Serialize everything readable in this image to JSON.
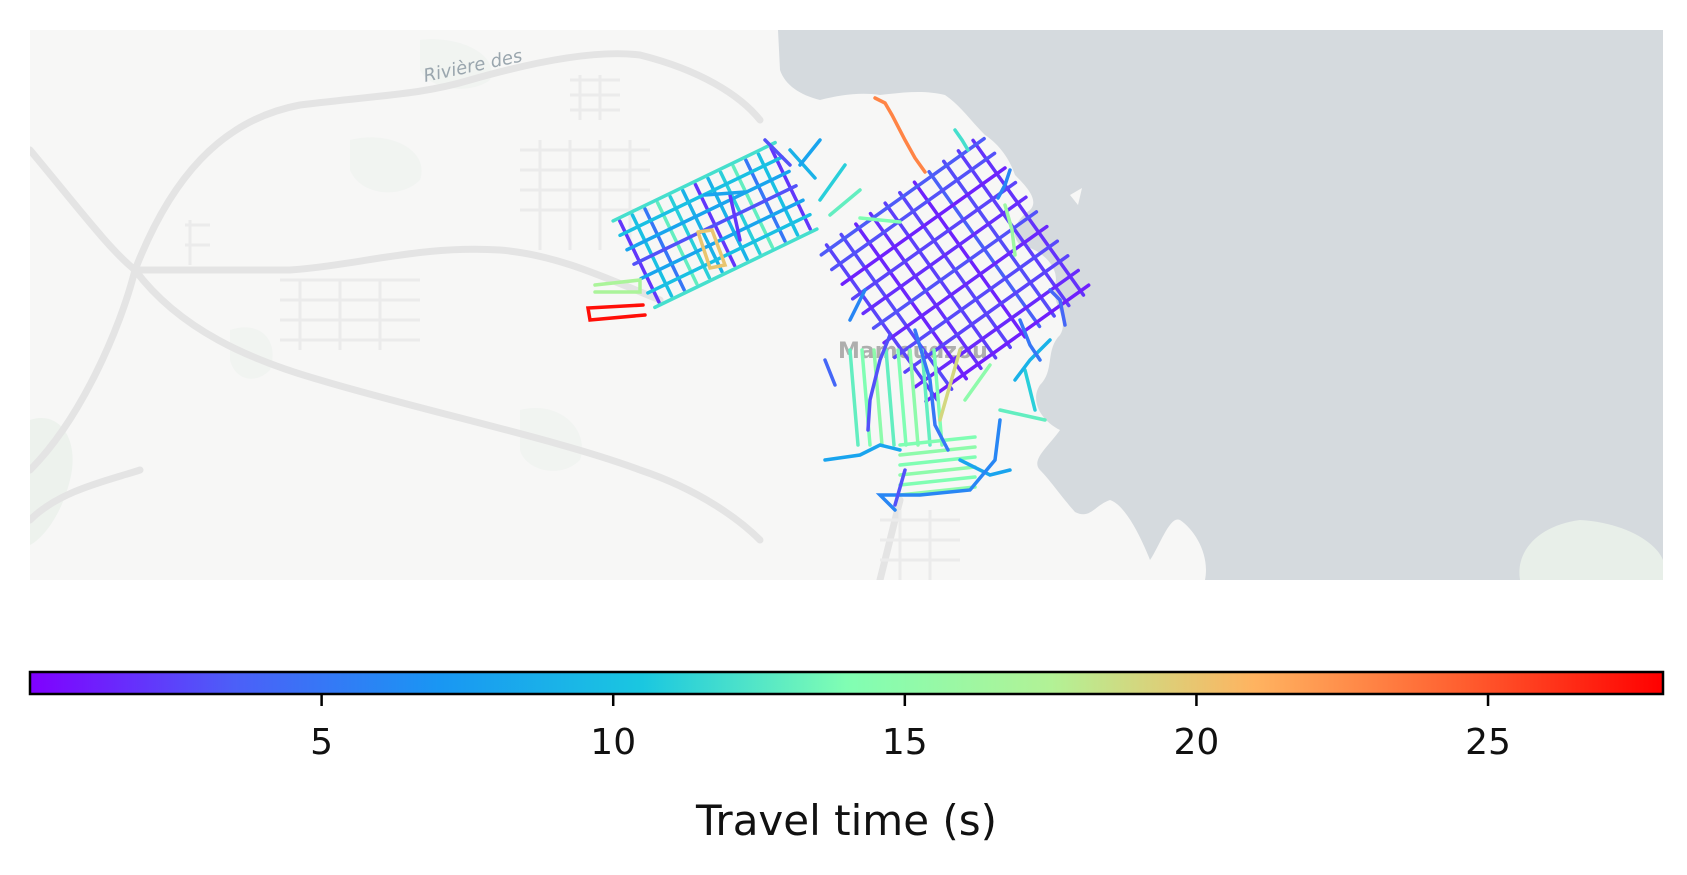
{
  "map": {
    "labels": {
      "river": "Rivière des",
      "town": "Mamoudzou"
    },
    "colors": {
      "land": "#f7f7f6",
      "water": "#d5dade",
      "green": "#e8efe9",
      "road": "#e6e6e6"
    },
    "colormap": "rainbow",
    "value_range": [
      0,
      28
    ]
  },
  "colorbar": {
    "label": "Travel time (s)",
    "min": 0,
    "max": 28,
    "ticks": [
      5,
      10,
      15,
      20,
      25
    ],
    "tick_labels": [
      "5",
      "10",
      "15",
      "20",
      "25"
    ]
  }
}
